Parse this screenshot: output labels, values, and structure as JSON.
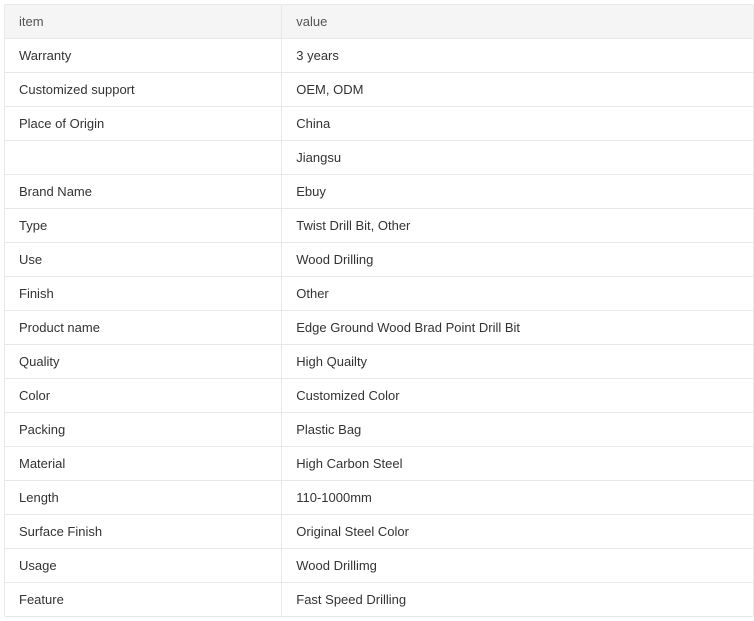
{
  "table": {
    "columns": [
      "item",
      "value"
    ],
    "rows": [
      [
        "Warranty",
        "3 years"
      ],
      [
        "Customized support",
        "OEM, ODM"
      ],
      [
        "Place of Origin",
        "China"
      ],
      [
        "",
        "Jiangsu"
      ],
      [
        "Brand Name",
        "Ebuy"
      ],
      [
        "Type",
        "Twist Drill Bit, Other"
      ],
      [
        "Use",
        "Wood Drilling"
      ],
      [
        "Finish",
        "Other"
      ],
      [
        "Product name",
        "Edge Ground Wood Brad Point Drill Bit"
      ],
      [
        "Quality",
        "High Quailty"
      ],
      [
        "Color",
        "Customized Color"
      ],
      [
        "Packing",
        "Plastic Bag"
      ],
      [
        "Material",
        "High Carbon Steel"
      ],
      [
        "Length",
        "110-1000mm"
      ],
      [
        "Surface Finish",
        "Original Steel Color"
      ],
      [
        "Usage",
        "Wood Drillimg"
      ],
      [
        "Feature",
        "Fast Speed Drilling"
      ]
    ],
    "header_bg": "#f5f5f5",
    "border_color": "#e8e8e8",
    "text_color": "#333333",
    "header_text_color": "#555555",
    "font_size": 13,
    "col1_width_pct": 37
  }
}
